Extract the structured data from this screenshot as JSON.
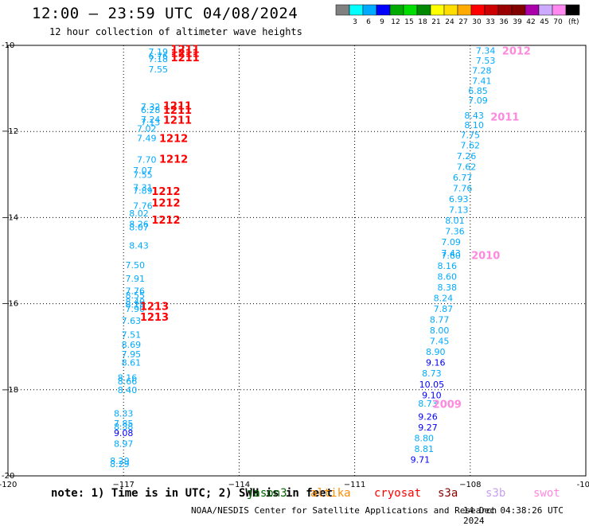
{
  "header": {
    "title": "12:00 – 23:59 UTC 04/08/2024",
    "subtitle": "12 hour collection of altimeter wave heights"
  },
  "footer": {
    "note": "note: 1) Time is in UTC; 2) SWH is in feet",
    "credit": "NOAA/NESDIS Center for Satellite Applications and Research",
    "timestamp": "14 Dec 04:38:26 UTC 2024"
  },
  "satellites": [
    {
      "name": "jason3",
      "color": "#006400"
    },
    {
      "name": "altika",
      "color": "#ff8c00"
    },
    {
      "name": "cryosat",
      "color": "#ff0000"
    },
    {
      "name": "s3a",
      "color": "#8b0000"
    },
    {
      "name": "s3b",
      "color": "#c8a0f0"
    },
    {
      "name": "swot",
      "color": "#ff88dd"
    }
  ],
  "chart_data": {
    "type": "scatter",
    "title": "12:00 – 23:59 UTC 04/08/2024",
    "xlim": [
      -120,
      -105
    ],
    "ylim": [
      -20,
      -10
    ],
    "xticks": [
      {
        "value": -120,
        "label": "-120"
      },
      {
        "value": -117,
        "label": "−117"
      },
      {
        "value": -114,
        "label": "−114"
      },
      {
        "value": -111,
        "label": "−111"
      },
      {
        "value": -108,
        "label": "−108"
      },
      {
        "value": -105,
        "label": "-105"
      }
    ],
    "yticks": [
      {
        "value": -10,
        "label": "-10"
      },
      {
        "value": -12,
        "label": "−12"
      },
      {
        "value": -14,
        "label": "−14"
      },
      {
        "value": -16,
        "label": "−16"
      },
      {
        "value": -18,
        "label": "−18"
      },
      {
        "value": -20,
        "label": "-20"
      }
    ],
    "grid": true,
    "colorbar": {
      "unit": "(ft)",
      "bins": [
        {
          "label": "",
          "color": "#808080"
        },
        {
          "label": "3",
          "color": "#00ffff"
        },
        {
          "label": "6",
          "color": "#00aaff"
        },
        {
          "label": "9",
          "color": "#0000ff"
        },
        {
          "label": "12",
          "color": "#00aa00"
        },
        {
          "label": "15",
          "color": "#00dd00"
        },
        {
          "label": "18",
          "color": "#008800"
        },
        {
          "label": "21",
          "color": "#ffff00"
        },
        {
          "label": "24",
          "color": "#ffdd00"
        },
        {
          "label": "27",
          "color": "#ffaa00"
        },
        {
          "label": "30",
          "color": "#ff0000"
        },
        {
          "label": "33",
          "color": "#cc0000"
        },
        {
          "label": "36",
          "color": "#990000"
        },
        {
          "label": "39",
          "color": "#800000"
        },
        {
          "label": "42",
          "color": "#aa00aa"
        },
        {
          "label": "45",
          "color": "#ccaaff"
        },
        {
          "label": "70",
          "color": "#ff88ee"
        },
        {
          "label": "",
          "color": "#000000"
        }
      ]
    },
    "series": [
      {
        "name": "track west",
        "points": [
          {
            "x": -116.1,
            "y": -10.15,
            "v": "7.19",
            "c": "#00aaff"
          },
          {
            "x": -116.1,
            "y": -10.25,
            "v": "6.76",
            "c": "#00aaff"
          },
          {
            "x": -116.1,
            "y": -10.31,
            "v": "7.18",
            "c": "#00aaff"
          },
          {
            "x": -116.1,
            "y": -10.55,
            "v": "7.55",
            "c": "#00aaff"
          },
          {
            "x": -116.3,
            "y": -11.42,
            "v": "7.32",
            "c": "#00aaff"
          },
          {
            "x": -116.3,
            "y": -11.5,
            "v": "6.28",
            "c": "#00aaff"
          },
          {
            "x": -116.3,
            "y": -11.72,
            "v": "7.24",
            "c": "#00aaff"
          },
          {
            "x": -116.3,
            "y": -11.78,
            "v": "7.13",
            "c": "#00aaff"
          },
          {
            "x": -116.4,
            "y": -11.93,
            "v": "7.02",
            "c": "#00aaff"
          },
          {
            "x": -116.4,
            "y": -12.15,
            "v": "7.49",
            "c": "#00aaff"
          },
          {
            "x": -116.4,
            "y": -12.65,
            "v": "7.70",
            "c": "#00aaff"
          },
          {
            "x": -116.5,
            "y": -12.9,
            "v": "7.07",
            "c": "#00aaff"
          },
          {
            "x": -116.5,
            "y": -13.0,
            "v": "7.55",
            "c": "#00aaff"
          },
          {
            "x": -116.5,
            "y": -13.3,
            "v": "7.31",
            "c": "#00aaff"
          },
          {
            "x": -116.5,
            "y": -13.37,
            "v": "7.89",
            "c": "#00aaff"
          },
          {
            "x": -116.5,
            "y": -13.72,
            "v": "7.76",
            "c": "#00aaff"
          },
          {
            "x": -116.6,
            "y": -13.9,
            "v": "8.02",
            "c": "#00aaff"
          },
          {
            "x": -116.6,
            "y": -14.15,
            "v": "8.26",
            "c": "#00aaff"
          },
          {
            "x": -116.6,
            "y": -14.22,
            "v": "8.07",
            "c": "#00aaff"
          },
          {
            "x": -116.6,
            "y": -14.65,
            "v": "8.43",
            "c": "#00aaff"
          },
          {
            "x": -116.7,
            "y": -15.1,
            "v": "7.50",
            "c": "#00aaff"
          },
          {
            "x": -116.7,
            "y": -15.42,
            "v": "7.91",
            "c": "#00aaff"
          },
          {
            "x": -116.7,
            "y": -15.7,
            "v": "7.76",
            "c": "#00aaff"
          },
          {
            "x": -116.7,
            "y": -15.8,
            "v": "8.55",
            "c": "#00aaff"
          },
          {
            "x": -116.7,
            "y": -15.95,
            "v": "8.40",
            "c": "#00aaff"
          },
          {
            "x": -116.7,
            "y": -16.02,
            "v": "8.18",
            "c": "#00aaff"
          },
          {
            "x": -116.7,
            "y": -16.12,
            "v": "7.90",
            "c": "#00aaff"
          },
          {
            "x": -116.8,
            "y": -16.4,
            "v": "7.63",
            "c": "#00aaff"
          },
          {
            "x": -116.8,
            "y": -16.72,
            "v": "7.51",
            "c": "#00aaff"
          },
          {
            "x": -116.8,
            "y": -16.95,
            "v": "8.69",
            "c": "#00aaff"
          },
          {
            "x": -116.8,
            "y": -17.17,
            "v": "7.95",
            "c": "#00aaff"
          },
          {
            "x": -116.8,
            "y": -17.37,
            "v": "8.61",
            "c": "#00aaff"
          },
          {
            "x": -116.9,
            "y": -17.72,
            "v": "8.16",
            "c": "#00aaff"
          },
          {
            "x": -116.9,
            "y": -17.8,
            "v": "8.66",
            "c": "#00aaff"
          },
          {
            "x": -116.9,
            "y": -18.0,
            "v": "8.40",
            "c": "#00aaff"
          },
          {
            "x": -117.0,
            "y": -18.55,
            "v": "8.33",
            "c": "#00aaff"
          },
          {
            "x": -117.0,
            "y": -18.78,
            "v": "7.85",
            "c": "#00aaff"
          },
          {
            "x": -117.0,
            "y": -18.85,
            "v": "8.38",
            "c": "#00aaff"
          },
          {
            "x": -117.0,
            "y": -19.0,
            "v": "9.08",
            "c": "#0000ff"
          },
          {
            "x": -117.0,
            "y": -19.25,
            "v": "8.97",
            "c": "#00aaff"
          },
          {
            "x": -117.1,
            "y": -19.65,
            "v": "8.29",
            "c": "#00aaff"
          },
          {
            "x": -117.1,
            "y": -19.72,
            "v": "8.29",
            "c": "#00aaff"
          }
        ]
      },
      {
        "name": "track east",
        "points": [
          {
            "x": -107.6,
            "y": -10.12,
            "v": "7.34",
            "c": "#00aaff"
          },
          {
            "x": -107.6,
            "y": -10.35,
            "v": "7.53",
            "c": "#00aaff"
          },
          {
            "x": -107.7,
            "y": -10.58,
            "v": "7.28",
            "c": "#00aaff"
          },
          {
            "x": -107.7,
            "y": -10.82,
            "v": "7.41",
            "c": "#00aaff"
          },
          {
            "x": -107.8,
            "y": -11.05,
            "v": "6.85",
            "c": "#00aaff"
          },
          {
            "x": -107.8,
            "y": -11.28,
            "v": "7.09",
            "c": "#00aaff"
          },
          {
            "x": -107.9,
            "y": -11.63,
            "v": "8.43",
            "c": "#00aaff"
          },
          {
            "x": -107.9,
            "y": -11.85,
            "v": "8.10",
            "c": "#00aaff"
          },
          {
            "x": -108.0,
            "y": -12.08,
            "v": "7.75",
            "c": "#00aaff"
          },
          {
            "x": -108.0,
            "y": -12.32,
            "v": "7.62",
            "c": "#00aaff"
          },
          {
            "x": -108.1,
            "y": -12.57,
            "v": "7.26",
            "c": "#00aaff"
          },
          {
            "x": -108.1,
            "y": -12.82,
            "v": "7.62",
            "c": "#00aaff"
          },
          {
            "x": -108.2,
            "y": -13.07,
            "v": "6.77",
            "c": "#00aaff"
          },
          {
            "x": -108.2,
            "y": -13.32,
            "v": "7.76",
            "c": "#00aaff"
          },
          {
            "x": -108.3,
            "y": -13.57,
            "v": "6.93",
            "c": "#00aaff"
          },
          {
            "x": -108.3,
            "y": -13.82,
            "v": "7.13",
            "c": "#00aaff"
          },
          {
            "x": -108.4,
            "y": -14.07,
            "v": "8.01",
            "c": "#00aaff"
          },
          {
            "x": -108.4,
            "y": -14.32,
            "v": "7.36",
            "c": "#00aaff"
          },
          {
            "x": -108.5,
            "y": -14.57,
            "v": "7.09",
            "c": "#00aaff"
          },
          {
            "x": -108.5,
            "y": -14.82,
            "v": "7.43",
            "c": "#00aaff"
          },
          {
            "x": -108.5,
            "y": -14.88,
            "v": "7.60",
            "c": "#00aaff"
          },
          {
            "x": -108.6,
            "y": -15.12,
            "v": "8.16",
            "c": "#00aaff"
          },
          {
            "x": -108.6,
            "y": -15.37,
            "v": "8.60",
            "c": "#00aaff"
          },
          {
            "x": -108.6,
            "y": -15.62,
            "v": "8.38",
            "c": "#00aaff"
          },
          {
            "x": -108.7,
            "y": -15.87,
            "v": "8.24",
            "c": "#00aaff"
          },
          {
            "x": -108.7,
            "y": -16.12,
            "v": "7.87",
            "c": "#00aaff"
          },
          {
            "x": -108.8,
            "y": -16.37,
            "v": "8.77",
            "c": "#00aaff"
          },
          {
            "x": -108.8,
            "y": -16.62,
            "v": "8.00",
            "c": "#00aaff"
          },
          {
            "x": -108.8,
            "y": -16.87,
            "v": "7.45",
            "c": "#00aaff"
          },
          {
            "x": -108.9,
            "y": -17.12,
            "v": "8.90",
            "c": "#00aaff"
          },
          {
            "x": -108.9,
            "y": -17.37,
            "v": "9.16",
            "c": "#0000ff"
          },
          {
            "x": -109.0,
            "y": -17.62,
            "v": "8.73",
            "c": "#00aaff"
          },
          {
            "x": -109.0,
            "y": -17.87,
            "v": "10.05",
            "c": "#0000ff"
          },
          {
            "x": -109.0,
            "y": -18.12,
            "v": "9.10",
            "c": "#0000ff"
          },
          {
            "x": -109.1,
            "y": -18.32,
            "v": "8.73",
            "c": "#00aaff"
          },
          {
            "x": -109.1,
            "y": -18.62,
            "v": "9.26",
            "c": "#0000ff"
          },
          {
            "x": -109.1,
            "y": -18.87,
            "v": "9.27",
            "c": "#0000ff"
          },
          {
            "x": -109.2,
            "y": -19.12,
            "v": "8.80",
            "c": "#00aaff"
          },
          {
            "x": -109.2,
            "y": -19.37,
            "v": "8.81",
            "c": "#00aaff"
          },
          {
            "x": -109.3,
            "y": -19.62,
            "v": "9.71",
            "c": "#0000ff"
          }
        ]
      }
    ],
    "time_labels": [
      {
        "x": -115.4,
        "y": -10.08,
        "text": "1211",
        "color": "#ff0000"
      },
      {
        "x": -115.4,
        "y": -10.18,
        "text": "1211",
        "color": "#ff0000"
      },
      {
        "x": -115.4,
        "y": -10.28,
        "text": "1211",
        "color": "#ff0000"
      },
      {
        "x": -115.6,
        "y": -11.4,
        "text": "1211",
        "color": "#ff0000"
      },
      {
        "x": -115.6,
        "y": -11.5,
        "text": "1211",
        "color": "#ff0000"
      },
      {
        "x": -115.6,
        "y": -11.73,
        "text": "1211",
        "color": "#ff0000"
      },
      {
        "x": -115.7,
        "y": -12.15,
        "text": "1212",
        "color": "#ff0000"
      },
      {
        "x": -115.7,
        "y": -12.63,
        "text": "1212",
        "color": "#ff0000"
      },
      {
        "x": -115.9,
        "y": -13.38,
        "text": "1212",
        "color": "#ff0000"
      },
      {
        "x": -115.9,
        "y": -13.65,
        "text": "1212",
        "color": "#ff0000"
      },
      {
        "x": -115.9,
        "y": -14.05,
        "text": "1212",
        "color": "#ff0000"
      },
      {
        "x": -116.2,
        "y": -16.05,
        "text": "1213",
        "color": "#ff0000"
      },
      {
        "x": -116.2,
        "y": -16.3,
        "text": "1213",
        "color": "#ff0000"
      },
      {
        "x": -106.8,
        "y": -10.12,
        "text": "2012",
        "color": "#ff88dd"
      },
      {
        "x": -107.1,
        "y": -11.65,
        "text": "2011",
        "color": "#ff88dd"
      },
      {
        "x": -107.6,
        "y": -14.87,
        "text": "2010",
        "color": "#ff88dd"
      },
      {
        "x": -108.6,
        "y": -18.33,
        "text": "2009",
        "color": "#ff88dd"
      }
    ]
  }
}
